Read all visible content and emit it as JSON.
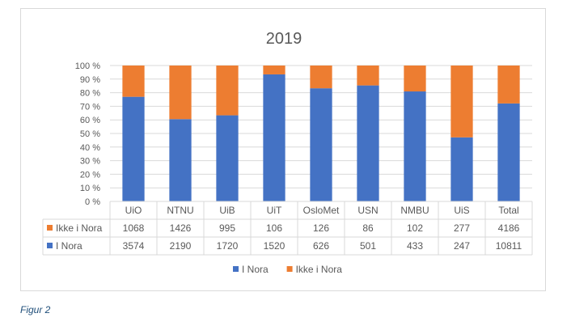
{
  "caption": "Figur 2",
  "chart_data": {
    "type": "bar",
    "stacked": "percent",
    "title": "2019",
    "categories": [
      "UiO",
      "NTNU",
      "UiB",
      "UiT",
      "OsloMet",
      "USN",
      "NMBU",
      "UiS",
      "Total"
    ],
    "series": [
      {
        "name": "I Nora",
        "color": "#4472c4",
        "values": [
          3574,
          2190,
          1720,
          1520,
          626,
          501,
          433,
          247,
          10811
        ]
      },
      {
        "name": "Ikke i Nora",
        "color": "#ed7d31",
        "values": [
          1068,
          1426,
          995,
          106,
          126,
          86,
          102,
          277,
          4186
        ]
      }
    ],
    "table_rows": [
      "Ikke i Nora",
      "I Nora"
    ],
    "yticks": [
      "0 %",
      "10 %",
      "20 %",
      "30 %",
      "40 %",
      "50 %",
      "60 %",
      "70 %",
      "80 %",
      "90 %",
      "100 %"
    ],
    "ylim": [
      0,
      100
    ],
    "grid": true,
    "legend_position": "bottom"
  }
}
